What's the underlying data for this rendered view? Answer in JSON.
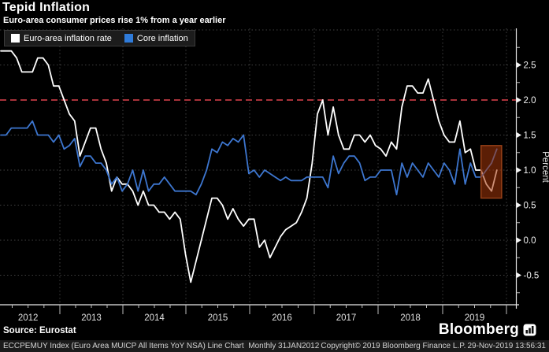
{
  "header": {
    "title": "Tepid Inflation",
    "subtitle": "Euro-area consumer prices rise 1% from a year earlier"
  },
  "legend": {
    "items": [
      {
        "label": "Euro-area inflation rate",
        "color": "#ffffff"
      },
      {
        "label": "Core inflation",
        "color": "#2f7bd9"
      }
    ]
  },
  "footer": {
    "source": "Source: Eurostat",
    "brand": "Bloomberg",
    "ticker_line": "ECCPEMUY Index (Euro Area MUICP All Items YoY NSA) Line Chart  Monthly 31JAN2012",
    "copyright": "Copyright© 2019 Bloomberg Finance L.P.",
    "timestamp": "29-Nov-2019 13:56:31"
  },
  "chart_data": {
    "type": "line",
    "title": "Tepid Inflation",
    "subtitle": "Euro-area consumer prices rise 1% from a year earlier",
    "ylabel": "Percent",
    "ylim": [
      -0.9,
      3.0
    ],
    "y_ticks": [
      2.5,
      2.0,
      1.5,
      1.0,
      0.5,
      0.0,
      -0.5
    ],
    "y_minor_ticks": [
      2.75,
      2.25,
      1.75,
      1.25,
      0.75,
      0.25,
      -0.25,
      -0.75
    ],
    "grid_values": [
      3.0,
      2.5,
      1.5,
      1.0,
      0.5,
      0.0,
      -0.5
    ],
    "grid_color": "#3f3f3f",
    "axis_color": "#e8e8e8",
    "x_years": [
      "2012",
      "2013",
      "2014",
      "2015",
      "2016",
      "2017",
      "2018",
      "2019"
    ],
    "x_year_separators": [
      76,
      156,
      236,
      317,
      399,
      480,
      562,
      643
    ],
    "x_start": "Jan 2012",
    "x_end": "Nov 2019",
    "frequency": "monthly",
    "reference_line": {
      "value": 2.0,
      "color": "#a8323a",
      "style": "dashed"
    },
    "series": [
      {
        "name": "Euro-area inflation rate",
        "color": "#ffffff",
        "values": [
          2.7,
          2.7,
          2.7,
          2.6,
          2.4,
          2.4,
          2.4,
          2.6,
          2.6,
          2.5,
          2.2,
          2.2,
          2.0,
          1.8,
          1.7,
          1.2,
          1.4,
          1.6,
          1.6,
          1.3,
          1.1,
          0.7,
          0.9,
          0.8,
          0.8,
          0.7,
          0.5,
          0.7,
          0.5,
          0.5,
          0.4,
          0.4,
          0.3,
          0.4,
          0.3,
          -0.2,
          -0.6,
          -0.3,
          0.0,
          0.3,
          0.6,
          0.6,
          0.5,
          0.3,
          0.45,
          0.3,
          0.2,
          0.3,
          0.3,
          -0.1,
          0.0,
          -0.25,
          -0.1,
          0.05,
          0.15,
          0.2,
          0.25,
          0.4,
          0.6,
          1.1,
          1.8,
          2.0,
          1.5,
          1.9,
          1.5,
          1.3,
          1.3,
          1.5,
          1.5,
          1.4,
          1.5,
          1.35,
          1.3,
          1.2,
          1.4,
          1.3,
          1.9,
          2.2,
          2.2,
          2.1,
          2.1,
          2.3,
          2.0,
          1.7,
          1.5,
          1.4,
          1.4,
          1.7,
          1.25,
          1.3,
          1.0,
          1.0,
          0.8,
          0.7,
          1.0
        ]
      },
      {
        "name": "Core inflation",
        "color": "#3d76cf",
        "values": [
          1.5,
          1.5,
          1.6,
          1.6,
          1.6,
          1.6,
          1.7,
          1.5,
          1.5,
          1.5,
          1.4,
          1.5,
          1.3,
          1.35,
          1.45,
          1.05,
          1.2,
          1.2,
          1.1,
          1.1,
          1.0,
          0.8,
          0.9,
          0.7,
          0.8,
          1.0,
          0.7,
          1.0,
          0.7,
          0.8,
          0.8,
          0.9,
          0.8,
          0.7,
          0.7,
          0.7,
          0.7,
          0.65,
          0.8,
          1.0,
          1.3,
          1.25,
          1.4,
          1.35,
          1.45,
          1.4,
          1.5,
          0.95,
          1.0,
          0.9,
          1.0,
          0.95,
          0.9,
          0.85,
          0.9,
          0.85,
          0.85,
          0.85,
          0.9,
          0.9,
          0.9,
          0.9,
          0.75,
          1.2,
          0.95,
          1.1,
          1.2,
          1.2,
          1.1,
          0.85,
          0.9,
          0.9,
          1.0,
          1.0,
          1.0,
          0.65,
          1.1,
          0.9,
          1.1,
          1.0,
          0.9,
          1.1,
          1.0,
          0.9,
          1.1,
          1.0,
          0.8,
          1.3,
          0.8,
          1.1,
          0.9,
          0.9,
          1.0,
          1.1,
          1.3
        ]
      }
    ],
    "highlight_box": {
      "start_month_index": 91,
      "end_month_index": 94.9,
      "value_top": 1.35,
      "value_bottom": 0.6,
      "fill": "rgba(165,55,10,0.55)",
      "border": "#964018"
    }
  }
}
